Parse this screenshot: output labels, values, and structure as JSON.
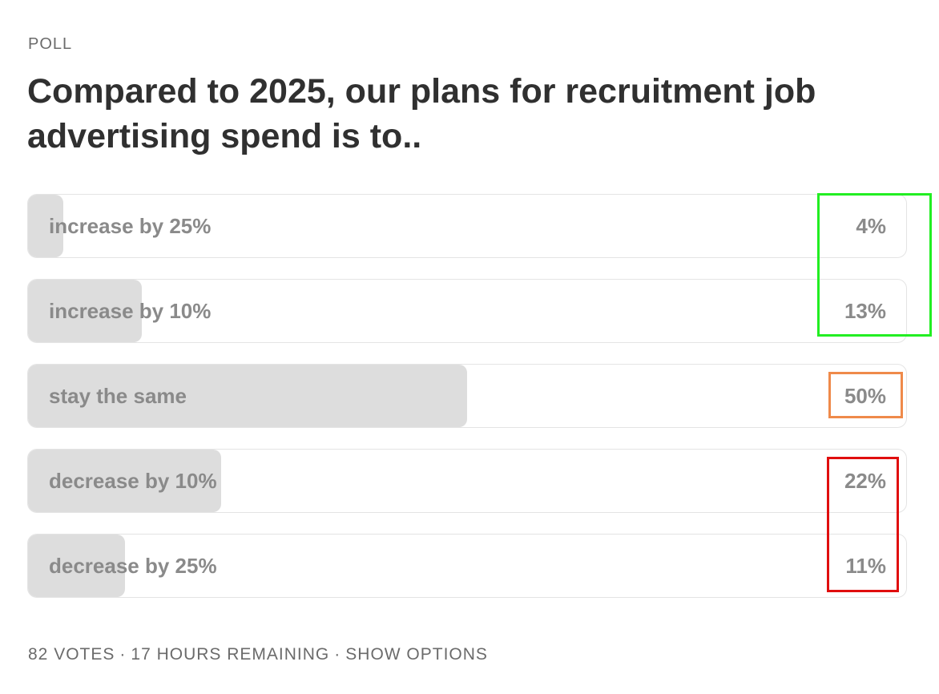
{
  "poll": {
    "label": "POLL",
    "question": "Compared to 2025, our plans for recruitment job advertising spend is to..",
    "options": [
      {
        "text": "increase by 25%",
        "percent": "4%",
        "value": 4
      },
      {
        "text": "increase by 10%",
        "percent": "13%",
        "value": 13
      },
      {
        "text": "stay the same",
        "percent": "50%",
        "value": 50
      },
      {
        "text": "decrease by 10%",
        "percent": "22%",
        "value": 22
      },
      {
        "text": "decrease by 25%",
        "percent": "11%",
        "value": 11
      }
    ],
    "footer": {
      "votes": "82 VOTES",
      "separator": "·",
      "remaining": "17 HOURS REMAINING",
      "show_options": "SHOW OPTIONS"
    }
  },
  "colors": {
    "highlight_increase": "#22ee22",
    "highlight_same": "#ef8a4a",
    "highlight_decrease": "#e00e0e",
    "bar_fill": "#dddddd"
  }
}
